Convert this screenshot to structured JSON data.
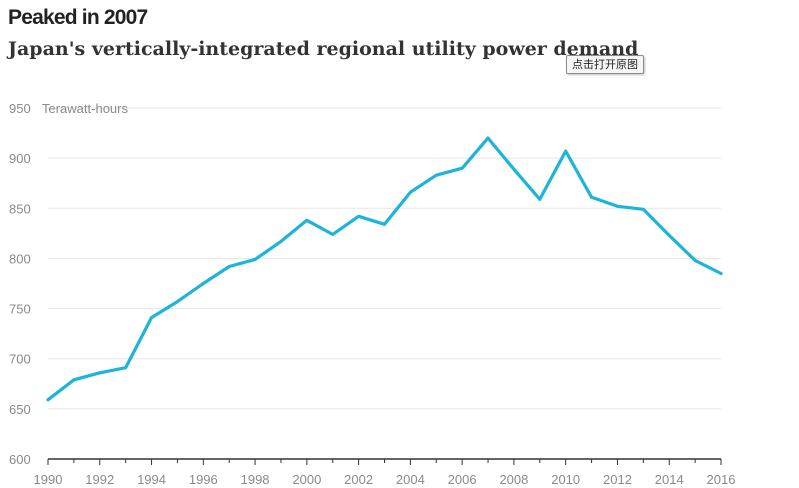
{
  "header": {
    "title": "Peaked in 2007",
    "subtitle": "Japan's vertically-integrated regional utility power demand"
  },
  "overlay": {
    "button_label": "点击打开原图"
  },
  "colors": {
    "line": "#1cb4d8",
    "grid": "#e6e6e6",
    "axis": "#333333",
    "tick_text": "#8a8a8a"
  },
  "chart_data": {
    "type": "line",
    "title": "Peaked in 2007",
    "subtitle": "Japan's vertically-integrated regional utility power demand",
    "xlabel": "",
    "ylabel": "Terawatt-hours",
    "y_unit_label": "Terawatt-hours",
    "xlim": [
      1990,
      2016
    ],
    "ylim": [
      600,
      950
    ],
    "y_ticks": [
      600,
      650,
      700,
      750,
      800,
      850,
      900,
      950
    ],
    "x_ticks": [
      1990,
      1992,
      1994,
      1996,
      1998,
      2000,
      2002,
      2004,
      2006,
      2008,
      2010,
      2012,
      2014,
      2016
    ],
    "grid": true,
    "legend": "none",
    "series": [
      {
        "name": "Power demand",
        "x": [
          1990,
          1991,
          1992,
          1993,
          1994,
          1995,
          1996,
          1997,
          1998,
          1999,
          2000,
          2001,
          2002,
          2003,
          2004,
          2005,
          2006,
          2007,
          2008,
          2009,
          2010,
          2011,
          2012,
          2013,
          2014,
          2015,
          2016
        ],
        "values": [
          659,
          679,
          686,
          691,
          741,
          757,
          775,
          792,
          799,
          817,
          838,
          824,
          842,
          834,
          866,
          883,
          890,
          920,
          889,
          859,
          907,
          861,
          852,
          849,
          823,
          798,
          785
        ]
      }
    ]
  }
}
